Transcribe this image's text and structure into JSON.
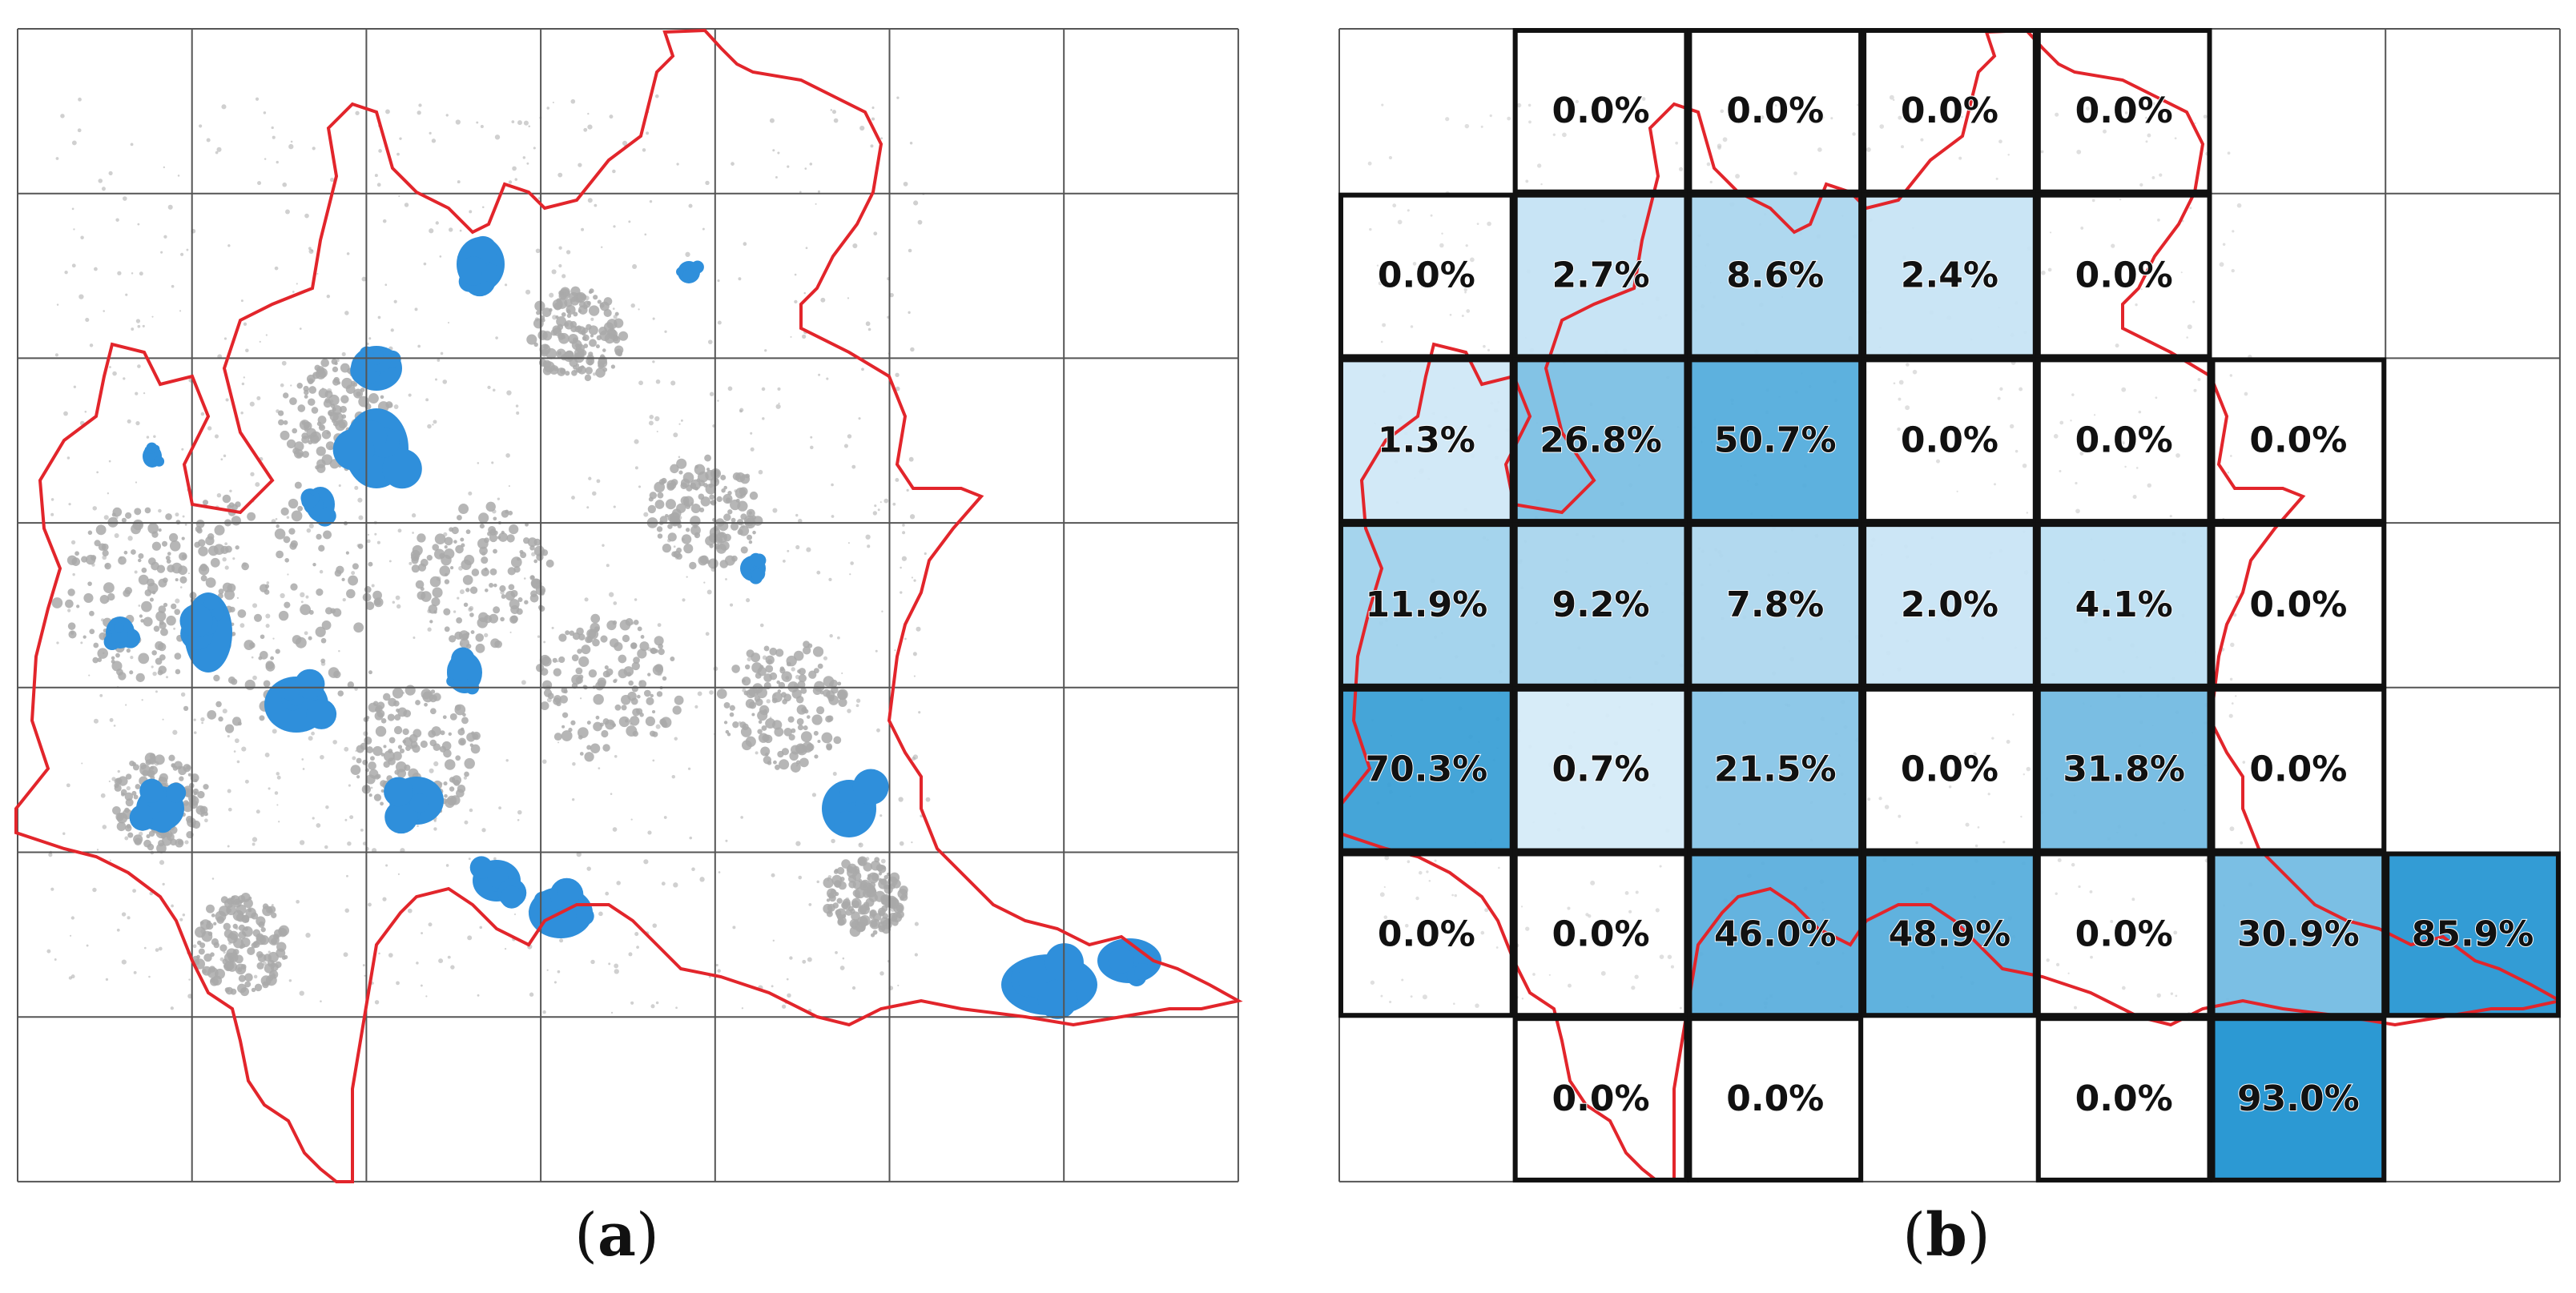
{
  "panels": {
    "a": {
      "caption_open": "(",
      "caption_letter": "a",
      "caption_close": ")"
    },
    "b": {
      "caption_open": "(",
      "caption_letter": "b",
      "caption_close": ")"
    }
  },
  "colors": {
    "boundary": "#e2252b",
    "grid": "#555555",
    "landcover_gray": "#a9a9a9",
    "patch_blue": "#2f8fdb",
    "cell_border": "#111111",
    "choropleth_min": "#e6f3fb",
    "choropleth_max": "#1a90cf"
  },
  "chart_data": {
    "type": "heatmap",
    "grid": {
      "rows": 7,
      "cols": 7
    },
    "cells": [
      {
        "row": 0,
        "col": 1,
        "label": "0.0%",
        "value": 0.0
      },
      {
        "row": 0,
        "col": 2,
        "label": "0.0%",
        "value": 0.0
      },
      {
        "row": 0,
        "col": 3,
        "label": "0.0%",
        "value": 0.0
      },
      {
        "row": 0,
        "col": 4,
        "label": "0.0%",
        "value": 0.0
      },
      {
        "row": 1,
        "col": 0,
        "label": "0.0%",
        "value": 0.0
      },
      {
        "row": 1,
        "col": 1,
        "label": "2.7%",
        "value": 2.7
      },
      {
        "row": 1,
        "col": 2,
        "label": "8.6%",
        "value": 8.6
      },
      {
        "row": 1,
        "col": 3,
        "label": "2.4%",
        "value": 2.4
      },
      {
        "row": 1,
        "col": 4,
        "label": "0.0%",
        "value": 0.0
      },
      {
        "row": 2,
        "col": 0,
        "label": "1.3%",
        "value": 1.3
      },
      {
        "row": 2,
        "col": 1,
        "label": "26.8%",
        "value": 26.8
      },
      {
        "row": 2,
        "col": 2,
        "label": "50.7%",
        "value": 50.7
      },
      {
        "row": 2,
        "col": 3,
        "label": "0.0%",
        "value": 0.0
      },
      {
        "row": 2,
        "col": 4,
        "label": "0.0%",
        "value": 0.0
      },
      {
        "row": 2,
        "col": 5,
        "label": "0.0%",
        "value": 0.0
      },
      {
        "row": 3,
        "col": 0,
        "label": "11.9%",
        "value": 11.9
      },
      {
        "row": 3,
        "col": 1,
        "label": "9.2%",
        "value": 9.2
      },
      {
        "row": 3,
        "col": 2,
        "label": "7.8%",
        "value": 7.8
      },
      {
        "row": 3,
        "col": 3,
        "label": "2.0%",
        "value": 2.0
      },
      {
        "row": 3,
        "col": 4,
        "label": "4.1%",
        "value": 4.1
      },
      {
        "row": 3,
        "col": 5,
        "label": "0.0%",
        "value": 0.0
      },
      {
        "row": 4,
        "col": 0,
        "label": "70.3%",
        "value": 70.3
      },
      {
        "row": 4,
        "col": 1,
        "label": "0.7%",
        "value": 0.7
      },
      {
        "row": 4,
        "col": 2,
        "label": "21.5%",
        "value": 21.5
      },
      {
        "row": 4,
        "col": 3,
        "label": "0.0%",
        "value": 0.0
      },
      {
        "row": 4,
        "col": 4,
        "label": "31.8%",
        "value": 31.8
      },
      {
        "row": 4,
        "col": 5,
        "label": "0.0%",
        "value": 0.0
      },
      {
        "row": 5,
        "col": 0,
        "label": "0.0%",
        "value": 0.0
      },
      {
        "row": 5,
        "col": 1,
        "label": "0.0%",
        "value": 0.0
      },
      {
        "row": 5,
        "col": 2,
        "label": "46.0%",
        "value": 46.0
      },
      {
        "row": 5,
        "col": 3,
        "label": "48.9%",
        "value": 48.9
      },
      {
        "row": 5,
        "col": 4,
        "label": "0.0%",
        "value": 0.0
      },
      {
        "row": 5,
        "col": 5,
        "label": "30.9%",
        "value": 30.9
      },
      {
        "row": 5,
        "col": 6,
        "label": "85.9%",
        "value": 85.9
      },
      {
        "row": 6,
        "col": 1,
        "label": "0.0%",
        "value": 0.0
      },
      {
        "row": 6,
        "col": 2,
        "label": "0.0%",
        "value": 0.0
      },
      {
        "row": 6,
        "col": 4,
        "label": "0.0%",
        "value": 0.0
      },
      {
        "row": 6,
        "col": 5,
        "label": "93.0%",
        "value": 93.0
      }
    ]
  }
}
